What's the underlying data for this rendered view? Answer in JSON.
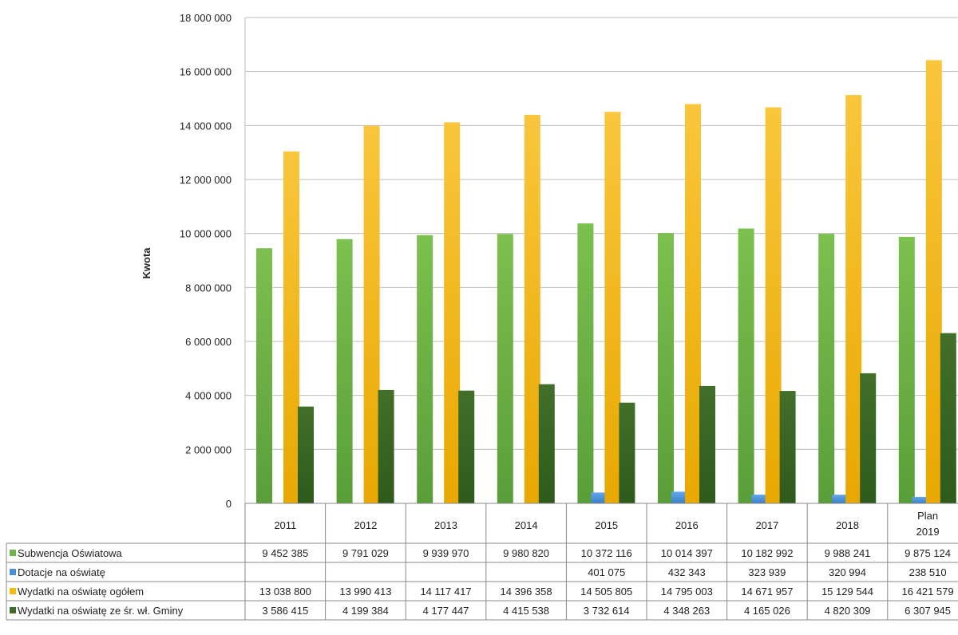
{
  "chart_data": {
    "type": "bar",
    "title": "",
    "xlabel": "",
    "ylabel": "Kwota",
    "ylim": [
      0,
      18000000
    ],
    "yticks": [
      0,
      2000000,
      4000000,
      6000000,
      8000000,
      10000000,
      12000000,
      14000000,
      16000000,
      18000000
    ],
    "ytick_labels": [
      "0",
      "2 000 000",
      "4 000 000",
      "6 000 000",
      "8 000 000",
      "10 000 000",
      "12 000 000",
      "14 000 000",
      "16 000 000",
      "18 000 000"
    ],
    "grid": true,
    "legend": "data-table-left",
    "categories": [
      "2011",
      "2012",
      "2013",
      "2014",
      "2015",
      "2016",
      "2017",
      "2018",
      "Plan 2019"
    ],
    "series": [
      {
        "name": "Subwencja Oświatowa",
        "color": "#6fb44a",
        "values": [
          9452385,
          9791029,
          9939970,
          9980820,
          10372116,
          10014397,
          10182992,
          9988241,
          9875124
        ],
        "labels": [
          "9 452 385",
          "9 791 029",
          "9 939 970",
          "9 980 820",
          "10 372 116",
          "10 014 397",
          "10 182 992",
          "9 988 241",
          "9 875 124"
        ]
      },
      {
        "name": "Dotacje na oświatę",
        "color": "#4a90d9",
        "values": [
          null,
          null,
          null,
          null,
          401075,
          432343,
          323939,
          320994,
          238510
        ],
        "labels": [
          "",
          "",
          "",
          "",
          "401 075",
          "432 343",
          "323 939",
          "320 994",
          "238 510"
        ]
      },
      {
        "name": "Wydatki na oświatę ogółem",
        "color": "#f5b915",
        "values": [
          13038800,
          13990413,
          14117417,
          14396358,
          14505805,
          14795003,
          14671957,
          15129544,
          16421579
        ],
        "labels": [
          "13 038 800",
          "13 990 413",
          "14 117 417",
          "14 396 358",
          "14 505 805",
          "14 795 003",
          "14 671 957",
          "15 129 544",
          "16 421 579"
        ]
      },
      {
        "name": "Wydatki na oświatę ze śr. wł. Gminy",
        "color": "#3f6e2a",
        "values": [
          3586415,
          4199384,
          4177447,
          4415538,
          3732614,
          4348263,
          4165026,
          4820309,
          6307945
        ],
        "labels": [
          "3 586 415",
          "4 199 384",
          "4 177 447",
          "4 415 538",
          "3 732 614",
          "4 348 263",
          "4 165 026",
          "4 820 309",
          "6 307 945"
        ]
      }
    ]
  }
}
